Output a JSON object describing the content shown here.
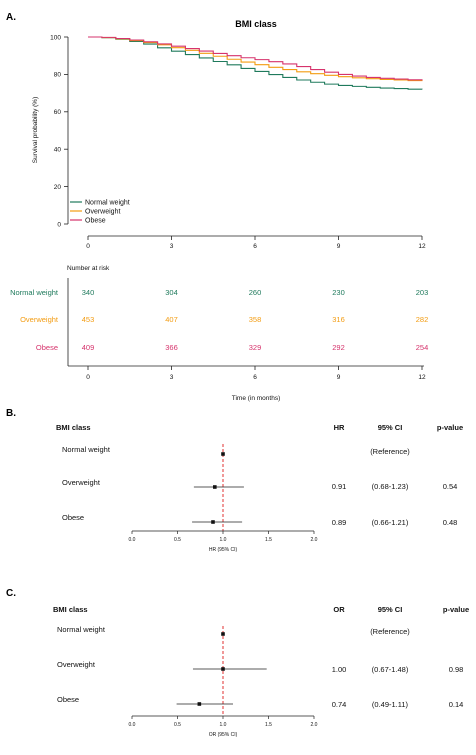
{
  "colors": {
    "normal_weight": "#1f7a5c",
    "overweight": "#f39c12",
    "obese": "#d6336c",
    "reference_line": "#e03131"
  },
  "panels": {
    "a": {
      "label": "A."
    },
    "b": {
      "label": "B."
    },
    "c": {
      "label": "C."
    }
  },
  "chart_data": [
    {
      "type": "line",
      "chart_kind": "kaplan-meier step curves",
      "title": "BMI class",
      "xlabel": "Time (in months)",
      "ylabel": "Survival probability (%)",
      "xlim": [
        0,
        12
      ],
      "ylim": [
        0,
        100
      ],
      "xticks": [
        "0",
        "3",
        "6",
        "9",
        "12"
      ],
      "yticks": [
        "0",
        "20",
        "40",
        "60",
        "80",
        "100"
      ],
      "grid": false,
      "legend_position": "bottom-left",
      "series": [
        {
          "name": "Normal weight",
          "color_key": "normal_weight",
          "x": [
            0,
            0.5,
            1,
            1.5,
            2,
            2.5,
            3,
            3.5,
            4,
            4.5,
            5,
            5.5,
            6,
            6.5,
            7,
            7.5,
            8,
            8.5,
            9,
            9.5,
            10,
            10.5,
            11,
            11.5,
            12
          ],
          "y": [
            100,
            99.6,
            98.8,
            97.6,
            96.2,
            94.2,
            92.4,
            90.6,
            88.8,
            86.9,
            85.1,
            83.2,
            81.6,
            79.9,
            78.4,
            77.0,
            75.8,
            74.8,
            74.1,
            73.6,
            73.1,
            72.7,
            72.4,
            72.1,
            71.9
          ]
        },
        {
          "name": "Overweight",
          "color_key": "overweight",
          "x": [
            0,
            0.5,
            1,
            1.5,
            2,
            2.5,
            3,
            3.5,
            4,
            4.5,
            5,
            5.5,
            6,
            6.5,
            7,
            7.5,
            8,
            8.5,
            9,
            9.5,
            10,
            10.5,
            11,
            11.5,
            12
          ],
          "y": [
            100,
            99.7,
            99.0,
            98.1,
            97.0,
            95.8,
            94.3,
            92.9,
            91.3,
            89.7,
            88.1,
            86.6,
            85.2,
            83.8,
            82.6,
            81.4,
            80.4,
            79.5,
            78.8,
            78.2,
            77.7,
            77.3,
            77.0,
            76.7,
            76.4
          ]
        },
        {
          "name": "Obese",
          "color_key": "obese",
          "x": [
            0,
            0.5,
            1,
            1.5,
            2,
            2.5,
            3,
            3.5,
            4,
            4.5,
            5,
            5.5,
            6,
            6.5,
            7,
            7.5,
            8,
            8.5,
            9,
            9.5,
            10,
            10.5,
            11,
            11.5,
            12
          ],
          "y": [
            100,
            99.8,
            99.2,
            98.4,
            97.4,
            96.3,
            95.1,
            93.8,
            92.5,
            91.2,
            90.0,
            88.9,
            87.9,
            86.8,
            85.6,
            84.2,
            82.6,
            81.2,
            80.0,
            79.1,
            78.4,
            77.9,
            77.5,
            77.1,
            76.8
          ]
        }
      ]
    },
    {
      "type": "table",
      "title": "Number at risk",
      "xlabel": "Time (in months)",
      "xlim": [
        0,
        12
      ],
      "xticks": [
        "0",
        "3",
        "6",
        "9",
        "12"
      ],
      "x": [
        0,
        3,
        6,
        9,
        12
      ],
      "rows": [
        {
          "name": "Normal weight",
          "color_key": "normal_weight",
          "values": [
            "340",
            "304",
            "260",
            "230",
            "203"
          ]
        },
        {
          "name": "Overweight",
          "color_key": "overweight",
          "values": [
            "453",
            "407",
            "358",
            "316",
            "282"
          ]
        },
        {
          "name": "Obese",
          "color_key": "obese",
          "values": [
            "409",
            "366",
            "329",
            "292",
            "254"
          ]
        }
      ]
    },
    {
      "type": "scatter",
      "chart_kind": "forest plot",
      "column_headers": {
        "label": "BMI class",
        "estimate": "HR",
        "ci": "95% CI",
        "p": "p-value"
      },
      "xlabel": "HR (95% CI)",
      "xlim": [
        0,
        2
      ],
      "xticks": [
        "0.0",
        "0.5",
        "1.0",
        "1.5",
        "2.0"
      ],
      "reference_value": 1.0,
      "rows": [
        {
          "name": "Normal weight",
          "estimate": 1.0,
          "lower": 1.0,
          "upper": 1.0,
          "estimate_text": "",
          "ci_text": "(Reference)",
          "p_text": ""
        },
        {
          "name": "Overweight",
          "estimate": 0.91,
          "lower": 0.68,
          "upper": 1.23,
          "estimate_text": "0.91",
          "ci_text": "(0.68-1.23)",
          "p_text": "0.54"
        },
        {
          "name": "Obese",
          "estimate": 0.89,
          "lower": 0.66,
          "upper": 1.21,
          "estimate_text": "0.89",
          "ci_text": "(0.66-1.21)",
          "p_text": "0.48"
        }
      ]
    },
    {
      "type": "scatter",
      "chart_kind": "forest plot",
      "column_headers": {
        "label": "BMI class",
        "estimate": "OR",
        "ci": "95% CI",
        "p": "p-value"
      },
      "xlabel": "OR (95% CI)",
      "xlim": [
        0,
        2
      ],
      "xticks": [
        "0.0",
        "0.5",
        "1.0",
        "1.5",
        "2.0"
      ],
      "reference_value": 1.0,
      "rows": [
        {
          "name": "Normal weight",
          "estimate": 1.0,
          "lower": 1.0,
          "upper": 1.0,
          "estimate_text": "",
          "ci_text": "(Reference)",
          "p_text": ""
        },
        {
          "name": "Overweight",
          "estimate": 1.0,
          "lower": 0.67,
          "upper": 1.48,
          "estimate_text": "1.00",
          "ci_text": "(0.67-1.48)",
          "p_text": "0.98"
        },
        {
          "name": "Obese",
          "estimate": 0.74,
          "lower": 0.49,
          "upper": 1.11,
          "estimate_text": "0.74",
          "ci_text": "(0.49-1.11)",
          "p_text": "0.14"
        }
      ]
    }
  ]
}
